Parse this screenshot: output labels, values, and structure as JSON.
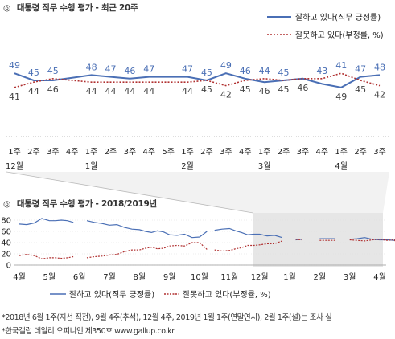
{
  "titles": {
    "mark": "◎",
    "top": "대통령 직무 수행 평가 - 최근 20주",
    "bottom": "대통령 직무 수행 평가 - 2018/2019년"
  },
  "colors": {
    "approve": "#4a6fb5",
    "disapprove": "#b03030",
    "shade": "#e6e6e6"
  },
  "footnotes": [
    "*2018년 6월 1주(지선 직전), 9월 4주(추석), 12월 4주, 2019년 1월 1주(연말연시), 2월 1주(설)는 조사 실",
    "*한국갤럽 데일리 오피니언 제350호 www.gallup.co.kr"
  ],
  "chart_data": [
    {
      "type": "line",
      "title": "대통령 직무 수행 평가 - 최근 20주",
      "categories": [
        "1주",
        "2주",
        "3주",
        "4주",
        "1주",
        "2주",
        "3주",
        "4주",
        "5주",
        "1주",
        "2주",
        "3주",
        "4주",
        "1주",
        "2주",
        "3주",
        "4주",
        "1주",
        "2주",
        "3주"
      ],
      "month_labels": [
        {
          "index": 0,
          "label": "12월"
        },
        {
          "index": 4,
          "label": "1월"
        },
        {
          "index": 9,
          "label": "2월"
        },
        {
          "index": 13,
          "label": "3월"
        },
        {
          "index": 17,
          "label": "4월"
        }
      ],
      "series": [
        {
          "name": "잘하고 있다(직무 긍정률)",
          "values": [
            49,
            45,
            45,
            null,
            48,
            47,
            46,
            47,
            null,
            47,
            45,
            49,
            46,
            44,
            45,
            46,
            43,
            41,
            47,
            48
          ]
        },
        {
          "name": "잘못하고 있다(부정률, %)",
          "values": [
            41,
            44,
            46,
            null,
            44,
            44,
            44,
            44,
            null,
            44,
            45,
            42,
            45,
            46,
            45,
            46,
            46,
            49,
            45,
            42
          ]
        }
      ],
      "labels_approve": [
        49,
        45,
        45,
        null,
        48,
        47,
        46,
        47,
        null,
        47,
        45,
        49,
        46,
        44,
        45,
        null,
        43,
        41,
        47,
        48
      ],
      "labels_disapprove": [
        41,
        44,
        46,
        null,
        44,
        44,
        44,
        44,
        null,
        44,
        45,
        42,
        45,
        46,
        45,
        46,
        null,
        49,
        45,
        42
      ],
      "legend": [
        "잘하고 있다(직무 긍정률)",
        "잘못하고 있다(부정률, %)"
      ],
      "legend_position": "top-right"
    },
    {
      "type": "line",
      "title": "대통령 직무 수행 평가 - 2018/2019년",
      "x_labels": [
        "4월",
        "5월",
        "6월",
        "7월",
        "8월",
        "9월",
        "10월",
        "11월",
        "12월",
        "1월",
        "2월",
        "3월",
        "4월"
      ],
      "ylim": [
        0,
        80
      ],
      "y_ticks": [
        0,
        20,
        40,
        60,
        80
      ],
      "weeks_per_month": [
        4,
        5,
        4,
        4,
        5,
        4,
        4,
        5,
        4,
        5,
        4,
        4,
        3
      ],
      "series": [
        {
          "name": "잘하고 있다(직무 긍정률)",
          "segments": [
            [
              73,
              72,
              75,
              83,
              79,
              79,
              80,
              79,
              76
            ],
            [
              79,
              76,
              74,
              71,
              72,
              67,
              64,
              63,
              60,
              58,
              61,
              59,
              54,
              53,
              55,
              49,
              50,
              60
            ],
            [
              62,
              64,
              65,
              61,
              58,
              54,
              55,
              55,
              52,
              53,
              49
            ],
            [
              45,
              46
            ],
            [
              47,
              47,
              47
            ],
            [
              46,
              47,
              49,
              46,
              45,
              45,
              44,
              45,
              46,
              47
            ]
          ]
        },
        {
          "name": "잘못하고 있다(부정률, %)",
          "segments": [
            [
              17,
              19,
              17,
              11,
              13,
              13,
              12,
              13,
              15
            ],
            [
              13,
              15,
              16,
              18,
              19,
              24,
              27,
              27,
              30,
              32,
              29,
              30,
              34,
              35,
              34,
              40,
              40,
              28
            ],
            [
              27,
              25,
              26,
              29,
              31,
              35,
              35,
              36,
              38,
              38,
              43
            ],
            [
              46,
              45
            ],
            [
              44,
              44,
              44
            ],
            [
              45,
              44,
              43,
              45,
              46,
              44,
              45,
              45,
              44,
              42
            ]
          ]
        }
      ],
      "legend": [
        "잘하고 있다(직무 긍정률)",
        "잘못하고 있다(부정률, %)"
      ],
      "legend_position": "bottom"
    }
  ]
}
